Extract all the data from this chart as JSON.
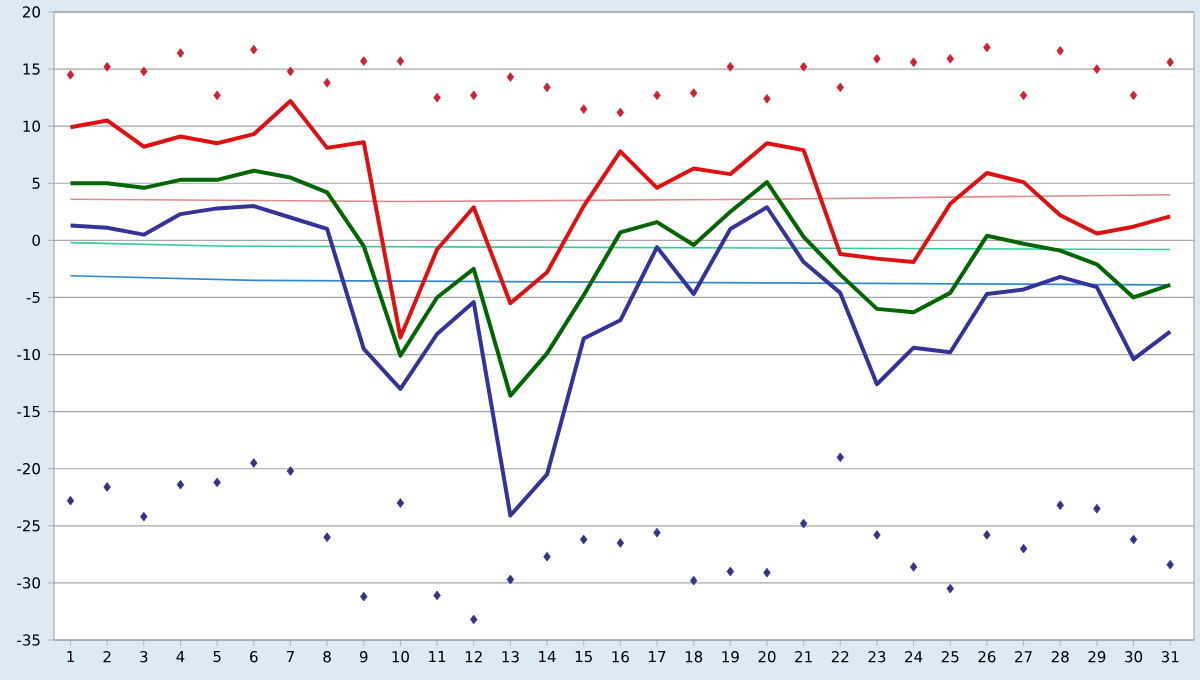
{
  "chart_data": {
    "type": "line",
    "x": [
      1,
      2,
      3,
      4,
      5,
      6,
      7,
      8,
      9,
      10,
      11,
      12,
      13,
      14,
      15,
      16,
      17,
      18,
      19,
      20,
      21,
      22,
      23,
      24,
      25,
      26,
      27,
      28,
      29,
      30,
      31
    ],
    "xlim": [
      0.55,
      31.65
    ],
    "xticks": [
      1,
      2,
      3,
      4,
      5,
      6,
      7,
      8,
      9,
      10,
      11,
      12,
      13,
      14,
      15,
      16,
      17,
      18,
      19,
      20,
      21,
      22,
      23,
      24,
      25,
      26,
      27,
      28,
      29,
      30,
      31
    ],
    "ylim": [
      -35,
      20
    ],
    "yticks": [
      -35,
      -30,
      -25,
      -20,
      -15,
      -10,
      -5,
      0,
      5,
      10,
      15,
      20
    ],
    "grid": "y",
    "marker": "none",
    "line_style": "solid",
    "series": [
      {
        "x": [
          1,
          10,
          20,
          31
        ],
        "color": "#e08a8a",
        "values": [
          3.6,
          3.4,
          3.6,
          4.0
        ]
      },
      {
        "x": [
          1,
          5,
          31
        ],
        "color": "#33cc99",
        "values": [
          -0.2,
          -0.5,
          -0.8
        ]
      },
      {
        "x": [
          1,
          6,
          31
        ],
        "color": "#3388cc",
        "values": [
          -3.1,
          -3.5,
          -3.9
        ]
      },
      {
        "color": "#dd1111",
        "values": [
          9.9,
          10.5,
          8.2,
          9.1,
          8.5,
          9.3,
          12.2,
          8.1,
          8.6,
          -8.5,
          -0.8,
          2.9,
          -5.5,
          -2.8,
          3.0,
          7.8,
          4.6,
          6.3,
          5.8,
          8.5,
          7.9,
          -1.2,
          -1.6,
          -1.9,
          3.2,
          5.9,
          5.1,
          2.2,
          0.6,
          1.2,
          2.1
        ]
      },
      {
        "color": "#006600",
        "values": [
          5.0,
          5.0,
          4.6,
          5.3,
          5.3,
          6.1,
          5.5,
          4.2,
          -0.5,
          -10.1,
          -5.0,
          -2.5,
          -13.6,
          -9.9,
          -4.8,
          0.7,
          1.6,
          -0.4,
          2.5,
          5.1,
          0.3,
          -3.0,
          -6.0,
          -6.3,
          -4.6,
          0.4,
          -0.3,
          -0.9,
          -2.1,
          -5.0,
          -3.9
        ]
      },
      {
        "color": "#333399",
        "values": [
          1.3,
          1.1,
          0.5,
          2.3,
          2.8,
          3.0,
          2.0,
          1.0,
          -9.5,
          -13.0,
          -8.2,
          -5.4,
          -24.1,
          -20.5,
          -8.6,
          -7.0,
          -0.6,
          -4.7,
          1.0,
          2.9,
          -1.9,
          -4.6,
          -12.6,
          -9.4,
          -9.8,
          -4.7,
          -4.3,
          -3.2,
          -4.1,
          -10.4,
          -8.0
        ]
      },
      {
        "type": "scatter",
        "marker": "diamond",
        "color": "#cc2233",
        "values": [
          14.5,
          15.2,
          14.8,
          16.4,
          12.7,
          16.7,
          14.8,
          13.8,
          15.7,
          15.7,
          12.5,
          12.7,
          14.3,
          13.4,
          11.5,
          11.2,
          12.7,
          12.9,
          15.2,
          12.4,
          15.2,
          13.4,
          15.9,
          15.6,
          15.9,
          16.9,
          12.7,
          16.6,
          15.0,
          12.7,
          15.6
        ]
      },
      {
        "type": "scatter",
        "marker": "diamond",
        "color": "#333388",
        "values": [
          -22.8,
          -21.6,
          -24.2,
          -21.4,
          -21.2,
          -19.5,
          -20.2,
          -26.0,
          -31.2,
          -23.0,
          -31.1,
          -33.2,
          -29.7,
          -27.7,
          -26.2,
          -26.5,
          -25.6,
          -29.8,
          -29.0,
          -29.1,
          -24.8,
          -19.0,
          -25.8,
          -28.6,
          -30.5,
          -25.8,
          -27.0,
          -23.2,
          -23.5,
          -26.2,
          -28.4
        ]
      }
    ]
  }
}
